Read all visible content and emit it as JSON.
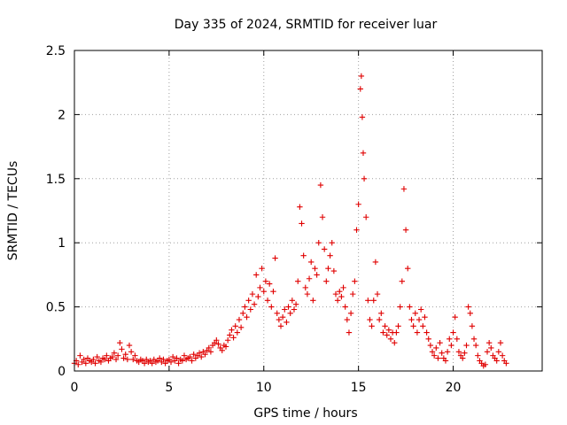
{
  "chart_data": {
    "type": "scatter",
    "title": "Day 335 of 2024, SRMTID for receiver luar",
    "xlabel": "GPS time / hours",
    "ylabel": "SRMTID / TECUs",
    "xlim": [
      0,
      24.7
    ],
    "ylim": [
      0,
      2.5
    ],
    "x_ticks": [
      0,
      5,
      10,
      15,
      20
    ],
    "y_ticks": [
      0,
      0.5,
      1,
      1.5,
      2,
      2.5
    ],
    "x_tick_labels": [
      "0",
      "5",
      "10",
      "15",
      "20"
    ],
    "y_tick_labels": [
      "0",
      "0.5",
      "1",
      "1.5",
      "2",
      "2.5"
    ],
    "grid": true,
    "marker": "+",
    "color": "#e00000",
    "series": [
      {
        "name": "SRMTID",
        "points": [
          [
            0.0,
            0.06
          ],
          [
            0.1,
            0.08
          ],
          [
            0.2,
            0.05
          ],
          [
            0.3,
            0.12
          ],
          [
            0.4,
            0.07
          ],
          [
            0.5,
            0.09
          ],
          [
            0.6,
            0.06
          ],
          [
            0.7,
            0.1
          ],
          [
            0.8,
            0.08
          ],
          [
            0.9,
            0.07
          ],
          [
            1.0,
            0.09
          ],
          [
            1.1,
            0.06
          ],
          [
            1.2,
            0.11
          ],
          [
            1.3,
            0.08
          ],
          [
            1.4,
            0.07
          ],
          [
            1.5,
            0.1
          ],
          [
            1.6,
            0.09
          ],
          [
            1.7,
            0.12
          ],
          [
            1.8,
            0.08
          ],
          [
            1.9,
            0.1
          ],
          [
            2.0,
            0.11
          ],
          [
            2.1,
            0.14
          ],
          [
            2.2,
            0.09
          ],
          [
            2.3,
            0.12
          ],
          [
            2.4,
            0.22
          ],
          [
            2.5,
            0.17
          ],
          [
            2.6,
            0.1
          ],
          [
            2.7,
            0.13
          ],
          [
            2.8,
            0.09
          ],
          [
            2.9,
            0.2
          ],
          [
            3.0,
            0.15
          ],
          [
            3.1,
            0.09
          ],
          [
            3.2,
            0.12
          ],
          [
            3.3,
            0.08
          ],
          [
            3.4,
            0.07
          ],
          [
            3.5,
            0.09
          ],
          [
            3.6,
            0.08
          ],
          [
            3.7,
            0.06
          ],
          [
            3.8,
            0.09
          ],
          [
            3.9,
            0.07
          ],
          [
            4.0,
            0.08
          ],
          [
            4.1,
            0.06
          ],
          [
            4.2,
            0.09
          ],
          [
            4.3,
            0.07
          ],
          [
            4.4,
            0.08
          ],
          [
            4.5,
            0.1
          ],
          [
            4.6,
            0.07
          ],
          [
            4.7,
            0.09
          ],
          [
            4.8,
            0.06
          ],
          [
            4.9,
            0.08
          ],
          [
            5.0,
            0.09
          ],
          [
            5.1,
            0.07
          ],
          [
            5.2,
            0.11
          ],
          [
            5.3,
            0.08
          ],
          [
            5.4,
            0.1
          ],
          [
            5.5,
            0.06
          ],
          [
            5.6,
            0.09
          ],
          [
            5.7,
            0.08
          ],
          [
            5.8,
            0.12
          ],
          [
            5.9,
            0.09
          ],
          [
            6.0,
            0.1
          ],
          [
            6.1,
            0.11
          ],
          [
            6.2,
            0.08
          ],
          [
            6.3,
            0.13
          ],
          [
            6.4,
            0.1
          ],
          [
            6.5,
            0.12
          ],
          [
            6.6,
            0.14
          ],
          [
            6.7,
            0.11
          ],
          [
            6.8,
            0.15
          ],
          [
            6.9,
            0.13
          ],
          [
            7.0,
            0.16
          ],
          [
            7.1,
            0.18
          ],
          [
            7.2,
            0.15
          ],
          [
            7.3,
            0.2
          ],
          [
            7.4,
            0.22
          ],
          [
            7.5,
            0.24
          ],
          [
            7.6,
            0.21
          ],
          [
            7.7,
            0.18
          ],
          [
            7.8,
            0.16
          ],
          [
            7.9,
            0.2
          ],
          [
            8.0,
            0.19
          ],
          [
            8.1,
            0.24
          ],
          [
            8.2,
            0.28
          ],
          [
            8.3,
            0.32
          ],
          [
            8.4,
            0.26
          ],
          [
            8.5,
            0.35
          ],
          [
            8.6,
            0.3
          ],
          [
            8.7,
            0.4
          ],
          [
            8.8,
            0.34
          ],
          [
            8.9,
            0.45
          ],
          [
            9.0,
            0.5
          ],
          [
            9.1,
            0.42
          ],
          [
            9.2,
            0.55
          ],
          [
            9.3,
            0.48
          ],
          [
            9.4,
            0.6
          ],
          [
            9.5,
            0.52
          ],
          [
            9.6,
            0.75
          ],
          [
            9.7,
            0.58
          ],
          [
            9.8,
            0.65
          ],
          [
            9.9,
            0.8
          ],
          [
            10.0,
            0.62
          ],
          [
            10.1,
            0.7
          ],
          [
            10.2,
            0.55
          ],
          [
            10.3,
            0.68
          ],
          [
            10.4,
            0.5
          ],
          [
            10.5,
            0.62
          ],
          [
            10.6,
            0.88
          ],
          [
            10.7,
            0.45
          ],
          [
            10.8,
            0.4
          ],
          [
            10.9,
            0.35
          ],
          [
            11.0,
            0.42
          ],
          [
            11.1,
            0.48
          ],
          [
            11.2,
            0.38
          ],
          [
            11.3,
            0.5
          ],
          [
            11.4,
            0.45
          ],
          [
            11.5,
            0.55
          ],
          [
            11.6,
            0.48
          ],
          [
            11.7,
            0.52
          ],
          [
            11.8,
            0.7
          ],
          [
            11.9,
            1.28
          ],
          [
            12.0,
            1.15
          ],
          [
            12.1,
            0.9
          ],
          [
            12.2,
            0.65
          ],
          [
            12.3,
            0.6
          ],
          [
            12.4,
            0.72
          ],
          [
            12.5,
            0.85
          ],
          [
            12.6,
            0.55
          ],
          [
            12.7,
            0.8
          ],
          [
            12.8,
            0.75
          ],
          [
            12.9,
            1.0
          ],
          [
            13.0,
            1.45
          ],
          [
            13.1,
            1.2
          ],
          [
            13.2,
            0.95
          ],
          [
            13.3,
            0.7
          ],
          [
            13.4,
            0.8
          ],
          [
            13.5,
            0.9
          ],
          [
            13.6,
            1.0
          ],
          [
            13.7,
            0.78
          ],
          [
            13.8,
            0.6
          ],
          [
            13.9,
            0.55
          ],
          [
            14.0,
            0.62
          ],
          [
            14.1,
            0.58
          ],
          [
            14.2,
            0.65
          ],
          [
            14.3,
            0.5
          ],
          [
            14.4,
            0.4
          ],
          [
            14.5,
            0.3
          ],
          [
            14.6,
            0.45
          ],
          [
            14.7,
            0.6
          ],
          [
            14.8,
            0.7
          ],
          [
            14.9,
            1.1
          ],
          [
            15.0,
            1.3
          ],
          [
            15.1,
            2.2
          ],
          [
            15.15,
            2.3
          ],
          [
            15.2,
            1.98
          ],
          [
            15.25,
            1.7
          ],
          [
            15.3,
            1.5
          ],
          [
            15.4,
            1.2
          ],
          [
            15.5,
            0.55
          ],
          [
            15.6,
            0.4
          ],
          [
            15.7,
            0.35
          ],
          [
            15.8,
            0.55
          ],
          [
            15.9,
            0.85
          ],
          [
            16.0,
            0.6
          ],
          [
            16.1,
            0.4
          ],
          [
            16.2,
            0.45
          ],
          [
            16.3,
            0.3
          ],
          [
            16.4,
            0.35
          ],
          [
            16.5,
            0.28
          ],
          [
            16.6,
            0.32
          ],
          [
            16.7,
            0.25
          ],
          [
            16.8,
            0.3
          ],
          [
            16.9,
            0.22
          ],
          [
            17.0,
            0.3
          ],
          [
            17.1,
            0.35
          ],
          [
            17.2,
            0.5
          ],
          [
            17.3,
            0.7
          ],
          [
            17.4,
            1.42
          ],
          [
            17.5,
            1.1
          ],
          [
            17.6,
            0.8
          ],
          [
            17.7,
            0.5
          ],
          [
            17.8,
            0.4
          ],
          [
            17.9,
            0.35
          ],
          [
            18.0,
            0.45
          ],
          [
            18.1,
            0.3
          ],
          [
            18.2,
            0.4
          ],
          [
            18.3,
            0.48
          ],
          [
            18.4,
            0.35
          ],
          [
            18.5,
            0.42
          ],
          [
            18.6,
            0.3
          ],
          [
            18.7,
            0.25
          ],
          [
            18.8,
            0.2
          ],
          [
            18.9,
            0.15
          ],
          [
            19.0,
            0.12
          ],
          [
            19.1,
            0.18
          ],
          [
            19.2,
            0.1
          ],
          [
            19.3,
            0.22
          ],
          [
            19.4,
            0.14
          ],
          [
            19.5,
            0.1
          ],
          [
            19.6,
            0.08
          ],
          [
            19.7,
            0.15
          ],
          [
            19.8,
            0.25
          ],
          [
            19.9,
            0.2
          ],
          [
            20.0,
            0.3
          ],
          [
            20.1,
            0.42
          ],
          [
            20.2,
            0.25
          ],
          [
            20.3,
            0.15
          ],
          [
            20.4,
            0.12
          ],
          [
            20.5,
            0.1
          ],
          [
            20.6,
            0.14
          ],
          [
            20.7,
            0.2
          ],
          [
            20.8,
            0.5
          ],
          [
            20.9,
            0.45
          ],
          [
            21.0,
            0.35
          ],
          [
            21.1,
            0.25
          ],
          [
            21.2,
            0.2
          ],
          [
            21.3,
            0.12
          ],
          [
            21.4,
            0.08
          ],
          [
            21.5,
            0.06
          ],
          [
            21.6,
            0.04
          ],
          [
            21.7,
            0.05
          ],
          [
            21.8,
            0.15
          ],
          [
            21.9,
            0.22
          ],
          [
            22.0,
            0.18
          ],
          [
            22.1,
            0.12
          ],
          [
            22.2,
            0.1
          ],
          [
            22.3,
            0.08
          ],
          [
            22.4,
            0.15
          ],
          [
            22.5,
            0.22
          ],
          [
            22.6,
            0.12
          ],
          [
            22.7,
            0.08
          ],
          [
            22.8,
            0.06
          ]
        ]
      }
    ]
  }
}
